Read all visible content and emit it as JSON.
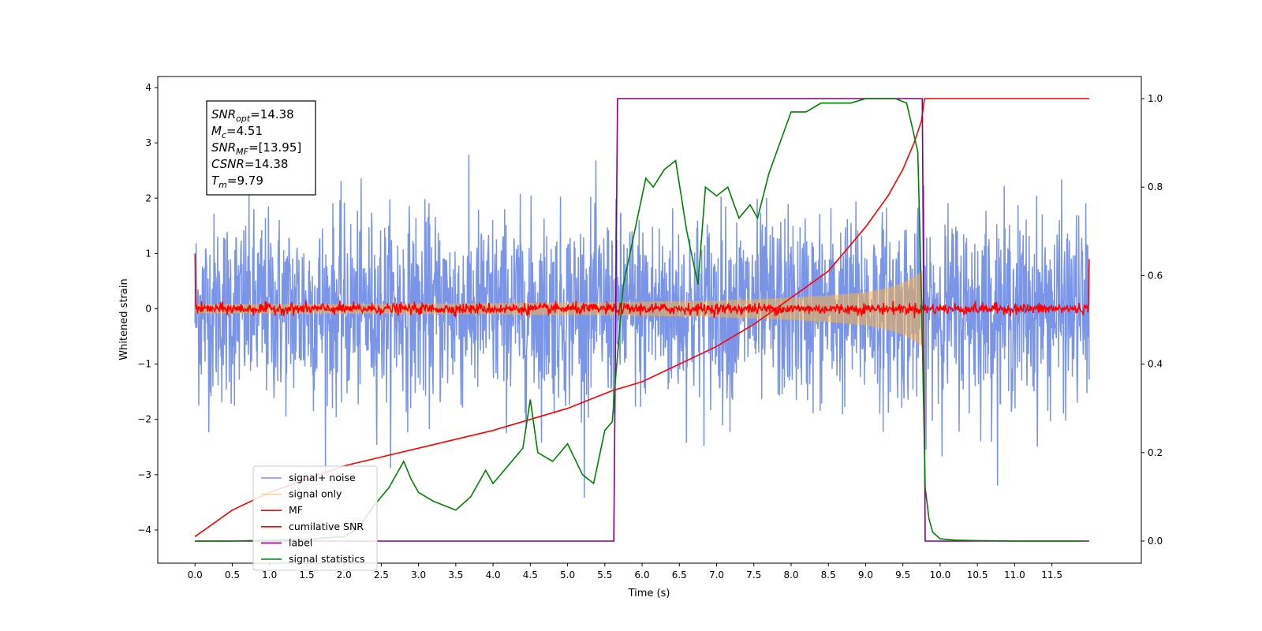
{
  "chart_data": {
    "type": "line",
    "xlabel": "Time (s)",
    "ylabel": "Whitened strain",
    "xlim": [
      -0.5,
      12.7
    ],
    "ylim": [
      -4.6,
      4.2
    ],
    "y2lim": [
      -0.05,
      1.05
    ],
    "x_ticks": [
      "0.0",
      "0.5",
      "1.0",
      "1.5",
      "2.0",
      "2.5",
      "3.0",
      "3.5",
      "4.0",
      "4.5",
      "5.0",
      "5.5",
      "6.0",
      "6.5",
      "7.0",
      "7.5",
      "8.0",
      "8.5",
      "9.0",
      "9.5",
      "10.0",
      "10.5",
      "11.0",
      "11.5"
    ],
    "y_ticks": [
      "4",
      "3",
      "2",
      "1",
      "0",
      "−1",
      "−2",
      "−3",
      "−4"
    ],
    "y2_ticks": [
      "1.0",
      "0.8",
      "0.6",
      "0.4",
      "0.2",
      "0.0"
    ],
    "grid": false,
    "legend_position": "lower-left",
    "annotation": {
      "lines": [
        {
          "sym": "SNR",
          "sub": "opt",
          "val": "=14.38"
        },
        {
          "sym": "M",
          "sub": "c",
          "val": "=4.51"
        },
        {
          "sym": "SNR",
          "sub": "MF",
          "val": "=[13.95]"
        },
        {
          "sym": "CSNR",
          "sub": "",
          "val": "=14.38"
        },
        {
          "sym": "T",
          "sub": "m",
          "val": "=9.79"
        }
      ]
    },
    "series": [
      {
        "name": "signal+ noise",
        "color": "#3b62dc",
        "axis": "left",
        "kind": "noise",
        "x_range": [
          0.0,
          12.0
        ],
        "amplitude_std": 0.85
      },
      {
        "name": "signal only",
        "color": "#f5b24a",
        "axis": "left",
        "kind": "chirp",
        "x_range": [
          0.0,
          9.79
        ],
        "envelope": {
          "x": [
            0.0,
            2.0,
            4.0,
            5.6,
            7.0,
            8.0,
            8.5,
            9.0,
            9.3,
            9.5,
            9.7,
            9.79
          ],
          "y": [
            0.08,
            0.09,
            0.1,
            0.12,
            0.15,
            0.2,
            0.24,
            0.3,
            0.38,
            0.47,
            0.62,
            0.72
          ]
        }
      },
      {
        "name": "MF",
        "color": "#ff0000",
        "axis": "left",
        "kind": "noise",
        "x_range": [
          0.0,
          12.0
        ],
        "amplitude_std": 0.05,
        "edge_values": [
          1.0,
          0.9
        ]
      },
      {
        "name": "cumilative SNR",
        "color": "#ff0000",
        "axis": "right",
        "kind": "line",
        "x": [
          0.0,
          0.5,
          1.0,
          2.0,
          3.0,
          4.0,
          5.0,
          5.6,
          6.0,
          7.0,
          7.5,
          8.0,
          8.5,
          9.0,
          9.3,
          9.5,
          9.65,
          9.75,
          9.79,
          12.0
        ],
        "y": [
          0.01,
          0.07,
          0.11,
          0.17,
          0.21,
          0.25,
          0.3,
          0.34,
          0.36,
          0.44,
          0.49,
          0.55,
          0.61,
          0.71,
          0.78,
          0.84,
          0.9,
          0.95,
          1.0,
          1.0
        ]
      },
      {
        "name": "label",
        "color": "#800080",
        "axis": "right",
        "kind": "line",
        "x": [
          0.0,
          5.62,
          5.67,
          9.76,
          9.8,
          12.0
        ],
        "y": [
          0.0,
          0.0,
          1.0,
          1.0,
          0.0,
          0.0
        ]
      },
      {
        "name": "signal statistics",
        "color": "#008000",
        "axis": "right",
        "kind": "line",
        "x": [
          0.0,
          0.5,
          1.0,
          1.5,
          2.0,
          2.2,
          2.4,
          2.6,
          2.8,
          2.9,
          3.0,
          3.2,
          3.5,
          3.7,
          3.9,
          4.0,
          4.2,
          4.4,
          4.5,
          4.6,
          4.8,
          5.0,
          5.2,
          5.35,
          5.5,
          5.6,
          5.65,
          5.75,
          5.85,
          5.95,
          6.05,
          6.15,
          6.3,
          6.45,
          6.6,
          6.75,
          6.85,
          7.0,
          7.15,
          7.3,
          7.45,
          7.55,
          7.7,
          7.85,
          8.0,
          8.2,
          8.4,
          8.6,
          8.8,
          9.0,
          9.2,
          9.4,
          9.55,
          9.62,
          9.7,
          9.75,
          9.8,
          9.85,
          9.9,
          10.0,
          10.2,
          10.5,
          11.0,
          11.5,
          11.95
        ],
        "y": [
          0.0,
          0.0,
          0.002,
          0.004,
          0.01,
          0.03,
          0.08,
          0.12,
          0.18,
          0.14,
          0.11,
          0.09,
          0.07,
          0.1,
          0.16,
          0.13,
          0.17,
          0.21,
          0.32,
          0.2,
          0.18,
          0.22,
          0.15,
          0.13,
          0.25,
          0.27,
          0.38,
          0.58,
          0.66,
          0.74,
          0.82,
          0.8,
          0.84,
          0.86,
          0.7,
          0.58,
          0.8,
          0.78,
          0.8,
          0.73,
          0.76,
          0.73,
          0.83,
          0.9,
          0.97,
          0.97,
          0.99,
          0.99,
          0.99,
          1.0,
          1.0,
          1.0,
          0.99,
          0.94,
          0.88,
          0.55,
          0.12,
          0.05,
          0.02,
          0.005,
          0.002,
          0.001,
          0.0,
          0.0,
          0.0
        ]
      }
    ]
  }
}
